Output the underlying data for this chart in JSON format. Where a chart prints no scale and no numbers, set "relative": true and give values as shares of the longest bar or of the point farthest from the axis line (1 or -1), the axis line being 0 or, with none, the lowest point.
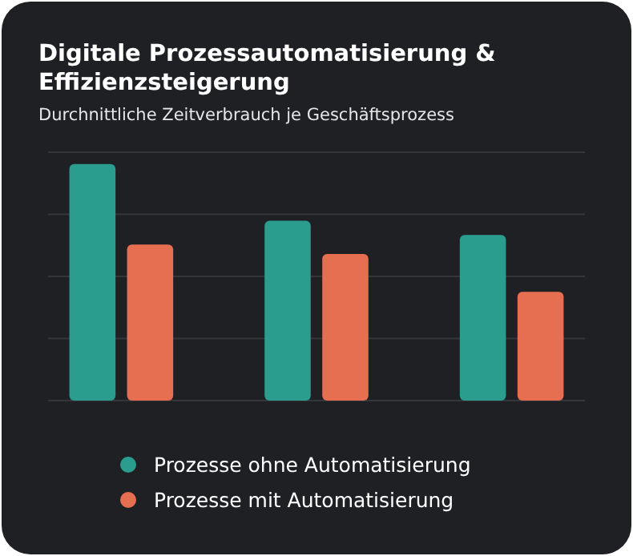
{
  "chart_data": {
    "type": "bar",
    "title": "Digitale Prozessautomatisierung & Effizienzsteigerung",
    "subtitle": "Durchnittliche Zeitverbrauch je Geschäftsprozess",
    "categories": [
      null,
      null,
      null
    ],
    "relative": true,
    "grid": true,
    "legend": "bottom",
    "series": [
      {
        "name": "Prozesse ohne Automatisierung",
        "color": "#2a9d8f",
        "values": [
          1,
          0.76,
          0.7
        ]
      },
      {
        "name": "Prozesse mit Automatisierung",
        "color": "#e76f51",
        "values": [
          0.66,
          0.62,
          0.46
        ]
      }
    ]
  }
}
